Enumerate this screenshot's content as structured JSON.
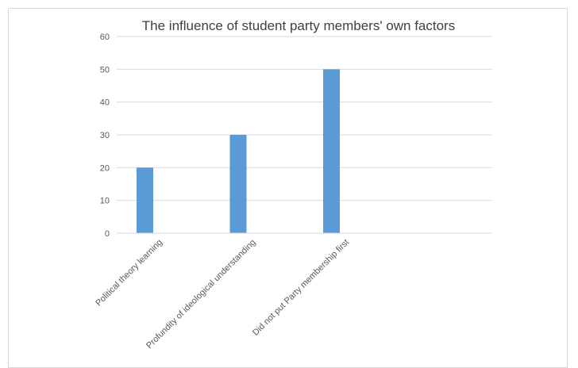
{
  "chart_data": {
    "type": "bar",
    "title": "The influence of student party members' own factors",
    "categories": [
      "Political theory learning",
      "Profundity of ideological understanding",
      "Did not put Party membership first"
    ],
    "values": [
      20,
      30,
      50
    ],
    "ylim": [
      0,
      60
    ],
    "yticks": [
      0,
      10,
      20,
      30,
      40,
      50,
      60
    ],
    "grid": true,
    "bar_color": "#5b9bd5"
  }
}
